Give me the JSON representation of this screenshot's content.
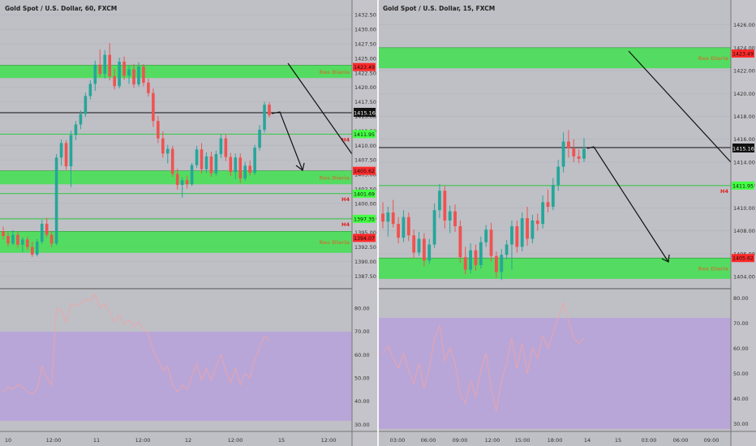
{
  "colors": {
    "background": "#bfbfc6",
    "up_candle": "#26a69a",
    "down_candle": "#ef5350",
    "zone_fill": "#3fe04f",
    "h4_line": "#2ecc40",
    "rsi_band": "#b9a6d8",
    "rsi_line": "#f3a3a3",
    "price_tag": "#111111",
    "res_tag": "#ff2a2a",
    "h4_tag": "#42ff42"
  },
  "left": {
    "title": "Gold Spot / U.S. Dollar, 60, FXCM",
    "current_price": "1415.16",
    "price_ticks": [
      "1432.50",
      "1430.00",
      "1427.50",
      "1425.00",
      "1422.50",
      "1420.00",
      "1417.50",
      "1415.00",
      "1412.50",
      "1410.00",
      "1407.50",
      "1405.00",
      "1402.50",
      "1400.00",
      "1397.50",
      "1395.00",
      "1392.50",
      "1390.00",
      "1387.50"
    ],
    "time_ticks": [
      "10",
      "12:00",
      "11",
      "12:00",
      "12",
      "12:00",
      "15",
      "12:00"
    ],
    "rsi_ticks": [
      "80.00",
      "70.00",
      "60.00",
      "50.00",
      "40.00",
      "30.00"
    ],
    "zones": [
      {
        "label": "Res Diaria",
        "tag": "1423.49",
        "top": 1423.8,
        "bottom": 1421.6
      },
      {
        "label": "Res Diaria",
        "tag": "1405.62",
        "top": 1405.62,
        "bottom": 1403.3
      },
      {
        "label": "Res Diaria",
        "tag": "1394.07",
        "top": 1395.2,
        "bottom": 1391.5
      }
    ],
    "h4_lines": [
      {
        "label": "H4",
        "tag": "1411.95",
        "price": 1411.95
      },
      {
        "label": "H4",
        "tag": "1401.69",
        "price": 1401.69
      },
      {
        "label": "H4",
        "tag": "1397.35",
        "price": 1397.35
      }
    ]
  },
  "right": {
    "title": "Gold Spot / U.S. Dollar, 15, FXCM",
    "current_price": "1415.16",
    "price_ticks": [
      "1426.00",
      "1424.00",
      "1422.00",
      "1420.00",
      "1418.00",
      "1416.00",
      "1414.00",
      "1412.00",
      "1410.00",
      "1408.00",
      "1406.00",
      "1404.00"
    ],
    "time_ticks": [
      "03:00",
      "06:00",
      "09:00",
      "12:00",
      "15:00",
      "18:00",
      "14",
      "15",
      "03:00",
      "06:00",
      "09:00"
    ],
    "rsi_ticks": [
      "80.00",
      "70.00",
      "60.00",
      "50.00",
      "40.00",
      "30.00"
    ],
    "zones": [
      {
        "label": "Res Diaria",
        "tag": "1423.49",
        "top": 1424.0,
        "bottom": 1422.2
      },
      {
        "label": "Res Diaria",
        "tag": "1405.62",
        "top": 1405.62,
        "bottom": 1403.8
      }
    ],
    "h4_lines": [
      {
        "label": "H4",
        "tag": "1411.95",
        "price": 1411.95
      }
    ]
  },
  "chart_data": [
    {
      "type": "candlestick",
      "title": "Gold Spot / U.S. Dollar, 60, FXCM",
      "ylim": [
        1387.0,
        1433.5
      ],
      "rsi_ylim": [
        27,
        87
      ],
      "rsi_band": [
        30,
        70
      ],
      "candles": [
        [
          1395.2,
          1396.0,
          1393.8,
          1394.4
        ],
        [
          1394.4,
          1395.0,
          1392.6,
          1393.1
        ],
        [
          1393.1,
          1395.4,
          1392.8,
          1394.6
        ],
        [
          1394.6,
          1395.1,
          1392.4,
          1392.9
        ],
        [
          1392.9,
          1394.2,
          1391.6,
          1393.8
        ],
        [
          1393.8,
          1394.3,
          1392.0,
          1392.5
        ],
        [
          1392.5,
          1393.4,
          1390.8,
          1391.2
        ],
        [
          1391.2,
          1393.9,
          1390.9,
          1393.4
        ],
        [
          1393.4,
          1397.2,
          1393.0,
          1396.5
        ],
        [
          1396.5,
          1397.5,
          1394.2,
          1394.6
        ],
        [
          1394.6,
          1395.3,
          1392.5,
          1393.1
        ],
        [
          1393.1,
          1408.5,
          1392.8,
          1407.9
        ],
        [
          1407.9,
          1411.0,
          1406.5,
          1410.4
        ],
        [
          1410.4,
          1410.9,
          1405.8,
          1406.4
        ],
        [
          1406.4,
          1412.5,
          1402.8,
          1411.8
        ],
        [
          1411.8,
          1414.2,
          1410.9,
          1413.6
        ],
        [
          1413.6,
          1416.0,
          1412.8,
          1415.4
        ],
        [
          1415.4,
          1419.1,
          1414.9,
          1418.5
        ],
        [
          1418.5,
          1421.2,
          1417.9,
          1420.6
        ],
        [
          1420.6,
          1424.6,
          1419.4,
          1423.9
        ],
        [
          1423.9,
          1426.5,
          1421.8,
          1422.3
        ],
        [
          1422.3,
          1426.4,
          1421.5,
          1425.6
        ],
        [
          1425.6,
          1427.6,
          1421.2,
          1421.9
        ],
        [
          1421.9,
          1423.2,
          1419.6,
          1420.2
        ],
        [
          1420.2,
          1425.1,
          1419.8,
          1424.4
        ],
        [
          1424.4,
          1425.3,
          1421.3,
          1422.0
        ],
        [
          1422.0,
          1423.7,
          1420.6,
          1423.1
        ],
        [
          1423.1,
          1424.0,
          1419.9,
          1420.5
        ],
        [
          1420.5,
          1424.3,
          1420.1,
          1423.6
        ],
        [
          1423.6,
          1424.0,
          1420.2,
          1420.8
        ],
        [
          1420.8,
          1421.5,
          1418.4,
          1419.0
        ],
        [
          1419.0,
          1419.8,
          1413.2,
          1414.2
        ],
        [
          1414.2,
          1415.0,
          1410.4,
          1411.2
        ],
        [
          1411.2,
          1412.4,
          1407.9,
          1408.6
        ],
        [
          1408.6,
          1410.1,
          1406.9,
          1409.4
        ],
        [
          1409.4,
          1409.9,
          1404.6,
          1405.1
        ],
        [
          1405.1,
          1406.0,
          1402.4,
          1403.2
        ],
        [
          1403.2,
          1404.5,
          1401.0,
          1404.0
        ],
        [
          1404.0,
          1404.8,
          1402.6,
          1403.3
        ],
        [
          1403.3,
          1407.0,
          1403.0,
          1406.6
        ],
        [
          1406.6,
          1409.9,
          1406.1,
          1409.3
        ],
        [
          1409.3,
          1410.4,
          1405.2,
          1405.9
        ],
        [
          1405.9,
          1408.8,
          1405.3,
          1408.1
        ],
        [
          1408.1,
          1408.9,
          1404.6,
          1405.2
        ],
        [
          1405.2,
          1409.1,
          1404.8,
          1408.5
        ],
        [
          1408.5,
          1411.9,
          1407.8,
          1411.2
        ],
        [
          1411.2,
          1411.9,
          1407.3,
          1408.0
        ],
        [
          1408.0,
          1408.7,
          1404.7,
          1405.4
        ],
        [
          1405.4,
          1408.6,
          1404.2,
          1407.9
        ],
        [
          1407.9,
          1408.6,
          1403.5,
          1404.3
        ],
        [
          1404.3,
          1407.2,
          1403.9,
          1406.5
        ],
        [
          1406.5,
          1407.4,
          1404.8,
          1405.3
        ],
        [
          1405.3,
          1410.1,
          1404.9,
          1409.6
        ],
        [
          1409.6,
          1413.5,
          1409.1,
          1412.7
        ],
        [
          1412.7,
          1417.5,
          1412.2,
          1417.0
        ],
        [
          1417.0,
          1417.4,
          1414.8,
          1415.2
        ]
      ],
      "rsi": [
        44,
        46,
        45,
        47,
        46,
        44,
        43,
        45,
        55,
        50,
        47,
        80,
        79,
        74,
        82,
        81,
        82,
        84,
        83,
        86,
        80,
        82,
        78,
        74,
        77,
        73,
        75,
        72,
        74,
        71,
        69,
        62,
        58,
        53,
        55,
        47,
        44,
        47,
        45,
        51,
        56,
        49,
        54,
        49,
        55,
        60,
        53,
        48,
        54,
        47,
        52,
        50,
        58,
        63,
        68,
        66
      ]
    },
    {
      "type": "candlestick",
      "title": "Gold Spot / U.S. Dollar, 15, FXCM",
      "ylim": [
        1402.8,
        1427.6
      ],
      "rsi_ylim": [
        27,
        83
      ],
      "rsi_band": [
        30,
        70
      ],
      "candles": [
        [
          1409.5,
          1410.5,
          1408.2,
          1408.8
        ],
        [
          1408.8,
          1410.1,
          1407.5,
          1409.6
        ],
        [
          1409.6,
          1410.7,
          1408.3,
          1408.6
        ],
        [
          1408.6,
          1409.2,
          1406.9,
          1407.4
        ],
        [
          1407.4,
          1409.8,
          1407.0,
          1409.2
        ],
        [
          1409.2,
          1409.6,
          1407.1,
          1407.6
        ],
        [
          1407.6,
          1408.1,
          1405.6,
          1406.1
        ],
        [
          1406.1,
          1407.9,
          1405.8,
          1407.3
        ],
        [
          1407.3,
          1407.8,
          1404.9,
          1405.4
        ],
        [
          1405.4,
          1407.3,
          1405.1,
          1406.8
        ],
        [
          1406.8,
          1410.4,
          1406.5,
          1409.8
        ],
        [
          1409.8,
          1412.1,
          1409.1,
          1411.5
        ],
        [
          1411.5,
          1411.9,
          1408.2,
          1408.9
        ],
        [
          1408.9,
          1410.2,
          1407.8,
          1409.7
        ],
        [
          1409.7,
          1410.3,
          1407.9,
          1408.4
        ],
        [
          1408.4,
          1408.9,
          1405.2,
          1405.7
        ],
        [
          1405.7,
          1406.6,
          1404.2,
          1404.6
        ],
        [
          1404.6,
          1406.9,
          1404.3,
          1406.3
        ],
        [
          1406.3,
          1406.8,
          1404.5,
          1405.0
        ],
        [
          1405.0,
          1407.5,
          1404.7,
          1407.0
        ],
        [
          1407.0,
          1408.5,
          1406.6,
          1408.1
        ],
        [
          1408.1,
          1408.7,
          1405.3,
          1405.8
        ],
        [
          1405.8,
          1406.2,
          1403.9,
          1404.4
        ],
        [
          1404.4,
          1406.4,
          1403.7,
          1405.9
        ],
        [
          1405.9,
          1407.2,
          1405.5,
          1406.8
        ],
        [
          1406.8,
          1408.9,
          1404.6,
          1408.4
        ],
        [
          1408.4,
          1408.9,
          1406.1,
          1406.6
        ],
        [
          1406.6,
          1409.6,
          1406.2,
          1409.1
        ],
        [
          1409.1,
          1410.1,
          1406.7,
          1407.3
        ],
        [
          1407.3,
          1409.4,
          1406.9,
          1408.9
        ],
        [
          1408.9,
          1409.5,
          1408.0,
          1408.6
        ],
        [
          1408.6,
          1411.1,
          1408.2,
          1410.5
        ],
        [
          1410.5,
          1411.6,
          1409.6,
          1410.1
        ],
        [
          1410.1,
          1412.6,
          1409.8,
          1412.0
        ],
        [
          1412.0,
          1414.2,
          1411.5,
          1413.6
        ],
        [
          1413.6,
          1416.6,
          1413.1,
          1415.8
        ],
        [
          1415.8,
          1416.8,
          1414.4,
          1415.2
        ],
        [
          1415.2,
          1416.0,
          1414.0,
          1414.5
        ],
        [
          1414.5,
          1415.1,
          1413.9,
          1414.3
        ],
        [
          1414.3,
          1416.1,
          1414.0,
          1415.16
        ]
      ],
      "rsi": [
        58,
        61,
        56,
        52,
        58,
        51,
        46,
        54,
        44,
        52,
        64,
        69,
        55,
        60,
        54,
        42,
        38,
        47,
        41,
        51,
        58,
        44,
        35,
        47,
        54,
        64,
        52,
        62,
        50,
        60,
        56,
        65,
        60,
        66,
        72,
        78,
        71,
        64,
        62,
        64
      ]
    }
  ]
}
